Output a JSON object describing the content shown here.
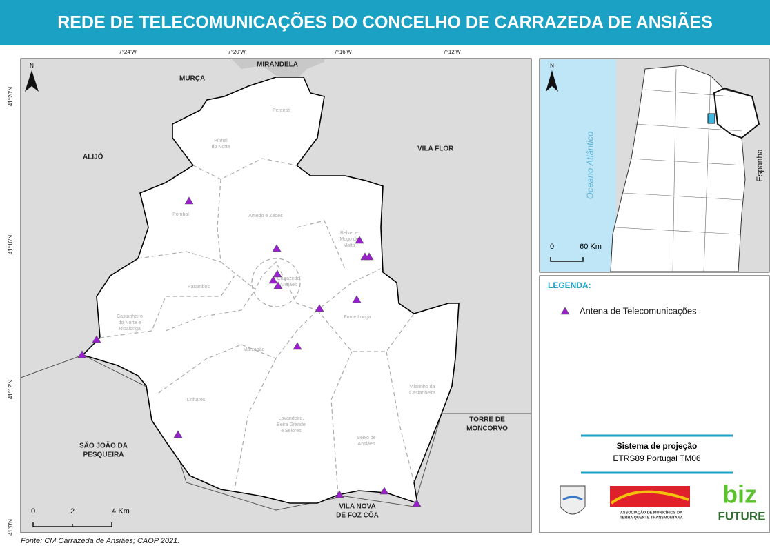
{
  "title": "REDE DE TELECOMUNICAÇÕES DO CONCELHO DE CARRAZEDA DE ANSIÃES",
  "coordinates": {
    "longitude": [
      "7°24'W",
      "7°20'W",
      "7°16'W",
      "7°12'W"
    ],
    "latitude": [
      "41°20'N",
      "41°16'N",
      "41°12'N",
      "41°8'N"
    ]
  },
  "neighbors": {
    "murca": [
      "MURÇA"
    ],
    "mirandela": [
      "MIRANDELA"
    ],
    "alijo": [
      "ALIJÓ"
    ],
    "vila_flor": [
      "VILA FLOR"
    ],
    "torre": [
      "TORRE DE",
      "MONCORVO"
    ],
    "sao_joao": [
      "SÃO JOÃO DA",
      "PESQUEIRA"
    ],
    "foz_coa": [
      "VILA NOVA",
      "DE FOZ CÔA"
    ]
  },
  "parishes": {
    "pereiros": [
      "Pereiros"
    ],
    "pinhal": [
      "Pinhal",
      "do Norte"
    ],
    "pombal": [
      "Pombal"
    ],
    "amedo": [
      "Amedo e Zedes"
    ],
    "belver": [
      "Belver e",
      "Mogo de",
      "Malta"
    ],
    "parambos": [
      "Parambos"
    ],
    "carrazeda": [
      "Carrazede",
      "Ansiães"
    ],
    "castanheiro": [
      "Castanheiro",
      "do Norte e",
      "Ribalonga"
    ],
    "fonte": [
      "Fonte Longa"
    ],
    "marzagao": [
      "Marzagão"
    ],
    "vilarinho": [
      "Vilarinho da",
      "Castanheira"
    ],
    "linhares": [
      "Linhares"
    ],
    "lavandeira": [
      "Lavandeira,",
      "Beira Grande",
      "e Selores"
    ],
    "seixo": [
      "Seixo de",
      "Ansiães"
    ]
  },
  "main_map": {
    "north": "N",
    "scale": [
      "0",
      "2",
      "4 Km"
    ]
  },
  "inset": {
    "north": "N",
    "ocean": "Oceano Atlântico",
    "country": "Espanha",
    "scale": [
      "0",
      "60 Km"
    ]
  },
  "legend": {
    "title": "LEGENDA:",
    "items": [
      "Antena de Telecomunicações"
    ]
  },
  "projection": {
    "title": "Sistema de projeção",
    "value": "ETRS89 Portugal TM06"
  },
  "logos": {
    "association": [
      "ASSOCIAÇÃO DE MUNICÍPIOS DA",
      "TERRA QUENTE TRANSMONTANA"
    ],
    "biz": "biz",
    "future": "FUTURE"
  },
  "source": "Fonte: CM Carrazeda de Ansiães; CAOP 2021."
}
